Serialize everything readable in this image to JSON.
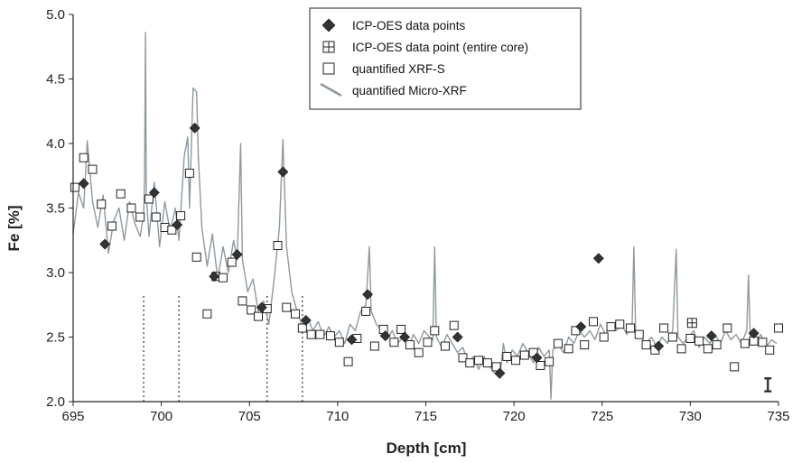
{
  "chart_data": {
    "type": "scatter",
    "xlabel": "Depth [cm]",
    "ylabel": "Fe [%]",
    "xlim": [
      695,
      735
    ],
    "ylim": [
      2.0,
      5.0
    ],
    "x_ticks": [
      "695",
      "700",
      "705",
      "710",
      "715",
      "720",
      "725",
      "730",
      "735"
    ],
    "y_ticks": [
      "2.0",
      "2.5",
      "3.0",
      "3.5",
      "4.0",
      "4.5",
      "5.0"
    ],
    "grid": false,
    "legend_position": "top-center",
    "legend": [
      {
        "label": "ICP-OES data points",
        "marker": "diamond-filled"
      },
      {
        "label": "ICP-OES data point (entire core)",
        "marker": "square-cross"
      },
      {
        "label": "quantified XRF-S",
        "marker": "square-open"
      },
      {
        "label": "quantified Micro-XRF",
        "marker": "line"
      }
    ],
    "series": [
      {
        "name": "ICP-OES data points",
        "points": [
          [
            695.6,
            3.69
          ],
          [
            696.8,
            3.22
          ],
          [
            699.6,
            3.62
          ],
          [
            700.9,
            3.37
          ],
          [
            701.9,
            4.12
          ],
          [
            703.0,
            2.97
          ],
          [
            704.3,
            3.14
          ],
          [
            705.7,
            2.73
          ],
          [
            706.9,
            3.78
          ],
          [
            708.2,
            2.63
          ],
          [
            710.8,
            2.48
          ],
          [
            711.7,
            2.83
          ],
          [
            712.7,
            2.51
          ],
          [
            713.8,
            2.5
          ],
          [
            716.8,
            2.5
          ],
          [
            719.2,
            2.22
          ],
          [
            721.3,
            2.34
          ],
          [
            723.8,
            2.58
          ],
          [
            724.8,
            3.11
          ],
          [
            728.2,
            2.43
          ],
          [
            731.2,
            2.51
          ],
          [
            733.6,
            2.53
          ]
        ]
      },
      {
        "name": "ICP-OES data point (entire core)",
        "points": [
          [
            730.1,
            2.61
          ]
        ]
      },
      {
        "name": "quantified XRF-S",
        "points": [
          [
            695.1,
            3.66
          ],
          [
            695.6,
            3.89
          ],
          [
            696.1,
            3.8
          ],
          [
            696.6,
            3.53
          ],
          [
            697.2,
            3.36
          ],
          [
            697.7,
            3.61
          ],
          [
            698.3,
            3.5
          ],
          [
            698.8,
            3.43
          ],
          [
            699.3,
            3.57
          ],
          [
            699.7,
            3.43
          ],
          [
            700.2,
            3.35
          ],
          [
            700.6,
            3.33
          ],
          [
            701.1,
            3.44
          ],
          [
            701.6,
            3.77
          ],
          [
            702.0,
            3.12
          ],
          [
            702.6,
            2.68
          ],
          [
            703.1,
            2.97
          ],
          [
            703.5,
            2.96
          ],
          [
            704.0,
            3.08
          ],
          [
            704.6,
            2.78
          ],
          [
            705.1,
            2.71
          ],
          [
            705.5,
            2.66
          ],
          [
            706.0,
            2.72
          ],
          [
            706.6,
            3.21
          ],
          [
            707.1,
            2.73
          ],
          [
            707.6,
            2.68
          ],
          [
            708.0,
            2.57
          ],
          [
            708.5,
            2.52
          ],
          [
            709.0,
            2.52
          ],
          [
            709.6,
            2.51
          ],
          [
            710.1,
            2.46
          ],
          [
            710.6,
            2.31
          ],
          [
            711.1,
            2.49
          ],
          [
            711.6,
            2.7
          ],
          [
            712.1,
            2.43
          ],
          [
            712.6,
            2.56
          ],
          [
            713.2,
            2.46
          ],
          [
            713.6,
            2.56
          ],
          [
            714.1,
            2.44
          ],
          [
            714.6,
            2.38
          ],
          [
            715.1,
            2.46
          ],
          [
            715.5,
            2.55
          ],
          [
            716.1,
            2.43
          ],
          [
            716.6,
            2.59
          ],
          [
            717.1,
            2.34
          ],
          [
            717.5,
            2.3
          ],
          [
            718.0,
            2.32
          ],
          [
            718.5,
            2.3
          ],
          [
            719.0,
            2.27
          ],
          [
            719.6,
            2.35
          ],
          [
            720.1,
            2.32
          ],
          [
            720.6,
            2.36
          ],
          [
            721.1,
            2.38
          ],
          [
            721.5,
            2.28
          ],
          [
            722.0,
            2.31
          ],
          [
            722.5,
            2.45
          ],
          [
            723.1,
            2.41
          ],
          [
            723.5,
            2.55
          ],
          [
            724.0,
            2.44
          ],
          [
            724.5,
            2.62
          ],
          [
            725.1,
            2.5
          ],
          [
            725.5,
            2.58
          ],
          [
            726.0,
            2.6
          ],
          [
            726.6,
            2.57
          ],
          [
            727.1,
            2.52
          ],
          [
            727.5,
            2.44
          ],
          [
            728.0,
            2.4
          ],
          [
            728.5,
            2.57
          ],
          [
            729.0,
            2.5
          ],
          [
            729.5,
            2.41
          ],
          [
            730.0,
            2.49
          ],
          [
            730.5,
            2.47
          ],
          [
            731.0,
            2.41
          ],
          [
            731.5,
            2.44
          ],
          [
            732.1,
            2.57
          ],
          [
            732.5,
            2.27
          ],
          [
            733.1,
            2.45
          ],
          [
            733.6,
            2.47
          ],
          [
            734.1,
            2.46
          ],
          [
            734.5,
            2.4
          ],
          [
            735.0,
            2.57
          ]
        ]
      },
      {
        "name": "quantified Micro-XRF",
        "color": "#8e99a0",
        "points": [
          [
            695.0,
            3.3
          ],
          [
            695.3,
            3.62
          ],
          [
            695.6,
            3.5
          ],
          [
            695.8,
            4.02
          ],
          [
            696.1,
            3.55
          ],
          [
            696.4,
            3.35
          ],
          [
            696.7,
            3.6
          ],
          [
            697.0,
            3.15
          ],
          [
            697.3,
            3.4
          ],
          [
            697.6,
            3.5
          ],
          [
            697.9,
            3.25
          ],
          [
            698.2,
            3.55
          ],
          [
            698.5,
            3.38
          ],
          [
            698.8,
            3.28
          ],
          [
            699.0,
            3.45
          ],
          [
            699.05,
            3.75
          ],
          [
            699.1,
            4.86
          ],
          [
            699.15,
            3.6
          ],
          [
            699.3,
            3.28
          ],
          [
            699.6,
            3.7
          ],
          [
            699.9,
            3.2
          ],
          [
            700.2,
            3.55
          ],
          [
            700.5,
            3.32
          ],
          [
            700.8,
            3.5
          ],
          [
            701.0,
            3.25
          ],
          [
            701.3,
            3.9
          ],
          [
            701.5,
            4.05
          ],
          [
            701.6,
            3.5
          ],
          [
            701.8,
            4.43
          ],
          [
            702.0,
            4.4
          ],
          [
            702.1,
            3.9
          ],
          [
            702.3,
            3.35
          ],
          [
            702.6,
            3.05
          ],
          [
            702.9,
            3.3
          ],
          [
            703.2,
            2.95
          ],
          [
            703.5,
            3.2
          ],
          [
            703.8,
            3.0
          ],
          [
            704.1,
            3.25
          ],
          [
            704.3,
            3.1
          ],
          [
            704.5,
            4.0
          ],
          [
            704.6,
            3.1
          ],
          [
            704.9,
            2.85
          ],
          [
            705.2,
            2.95
          ],
          [
            705.5,
            2.7
          ],
          [
            705.8,
            2.78
          ],
          [
            706.1,
            2.6
          ],
          [
            706.4,
            2.95
          ],
          [
            706.7,
            3.35
          ],
          [
            706.9,
            4.03
          ],
          [
            707.1,
            3.2
          ],
          [
            707.4,
            2.85
          ],
          [
            707.7,
            2.7
          ],
          [
            708.0,
            2.58
          ],
          [
            708.3,
            2.65
          ],
          [
            708.6,
            2.55
          ],
          [
            708.9,
            2.62
          ],
          [
            709.2,
            2.5
          ],
          [
            709.5,
            2.58
          ],
          [
            709.8,
            2.5
          ],
          [
            710.1,
            2.55
          ],
          [
            710.4,
            2.45
          ],
          [
            710.7,
            2.6
          ],
          [
            711.0,
            2.55
          ],
          [
            711.3,
            2.7
          ],
          [
            711.6,
            2.75
          ],
          [
            711.8,
            3.2
          ],
          [
            711.9,
            2.7
          ],
          [
            712.2,
            2.6
          ],
          [
            712.5,
            2.55
          ],
          [
            712.8,
            2.48
          ],
          [
            713.1,
            2.55
          ],
          [
            713.4,
            2.45
          ],
          [
            713.7,
            2.5
          ],
          [
            714.0,
            2.42
          ],
          [
            714.3,
            2.52
          ],
          [
            714.6,
            2.45
          ],
          [
            714.9,
            2.55
          ],
          [
            715.2,
            2.5
          ],
          [
            715.4,
            2.48
          ],
          [
            715.5,
            3.2
          ],
          [
            715.6,
            2.5
          ],
          [
            715.9,
            2.42
          ],
          [
            716.2,
            2.52
          ],
          [
            716.5,
            2.45
          ],
          [
            716.8,
            2.38
          ],
          [
            717.1,
            2.42
          ],
          [
            717.4,
            2.3
          ],
          [
            717.7,
            2.35
          ],
          [
            718.0,
            2.25
          ],
          [
            718.3,
            2.35
          ],
          [
            718.6,
            2.28
          ],
          [
            718.9,
            2.22
          ],
          [
            719.2,
            2.18
          ],
          [
            719.4,
            2.45
          ],
          [
            719.6,
            2.3
          ],
          [
            719.9,
            2.4
          ],
          [
            720.2,
            2.35
          ],
          [
            720.5,
            2.45
          ],
          [
            720.8,
            2.38
          ],
          [
            721.1,
            2.3
          ],
          [
            721.4,
            2.42
          ],
          [
            721.7,
            2.35
          ],
          [
            722.0,
            2.4
          ],
          [
            722.1,
            2.02
          ],
          [
            722.2,
            2.4
          ],
          [
            722.5,
            2.45
          ],
          [
            722.8,
            2.38
          ],
          [
            723.1,
            2.5
          ],
          [
            723.4,
            2.45
          ],
          [
            723.7,
            2.55
          ],
          [
            724.0,
            2.5
          ],
          [
            724.3,
            2.55
          ],
          [
            724.6,
            2.48
          ],
          [
            724.9,
            2.6
          ],
          [
            725.2,
            2.52
          ],
          [
            725.5,
            2.6
          ],
          [
            725.8,
            2.55
          ],
          [
            726.1,
            2.6
          ],
          [
            726.4,
            2.52
          ],
          [
            726.7,
            2.58
          ],
          [
            726.8,
            3.2
          ],
          [
            726.9,
            2.55
          ],
          [
            727.2,
            2.5
          ],
          [
            727.5,
            2.45
          ],
          [
            727.8,
            2.5
          ],
          [
            728.1,
            2.42
          ],
          [
            728.4,
            2.5
          ],
          [
            728.7,
            2.45
          ],
          [
            729.0,
            2.55
          ],
          [
            729.2,
            3.18
          ],
          [
            729.3,
            2.5
          ],
          [
            729.6,
            2.45
          ],
          [
            729.9,
            2.5
          ],
          [
            730.2,
            2.55
          ],
          [
            730.5,
            2.42
          ],
          [
            730.8,
            2.5
          ],
          [
            731.1,
            2.45
          ],
          [
            731.4,
            2.52
          ],
          [
            731.7,
            2.45
          ],
          [
            732.0,
            2.55
          ],
          [
            732.3,
            2.48
          ],
          [
            732.6,
            2.52
          ],
          [
            732.9,
            2.45
          ],
          [
            733.2,
            2.55
          ],
          [
            733.3,
            2.98
          ],
          [
            733.4,
            2.5
          ],
          [
            733.7,
            2.45
          ],
          [
            734.0,
            2.52
          ],
          [
            734.3,
            2.42
          ],
          [
            734.6,
            2.48
          ],
          [
            734.9,
            2.45
          ]
        ]
      }
    ],
    "annotations": {
      "dotted_lines_x": [
        699.0,
        701.0,
        706.0,
        708.0
      ],
      "error_bar": {
        "x": 734.4,
        "y": 2.13,
        "low": 2.08,
        "high": 2.18
      }
    }
  }
}
